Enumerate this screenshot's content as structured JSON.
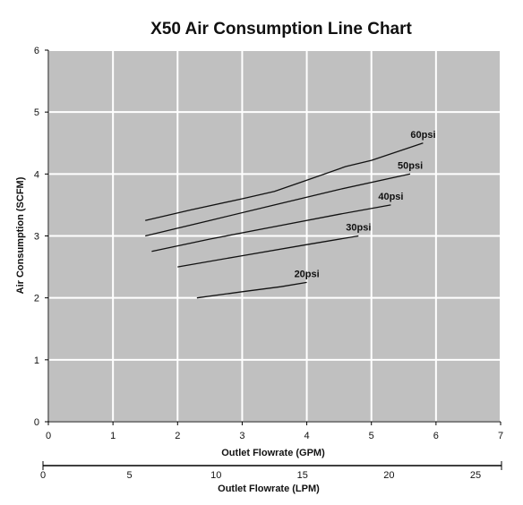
{
  "chart_data": {
    "type": "line",
    "title": "X50 Air Consumption Line Chart",
    "xlabel": "Outlet Flowrate (GPM)",
    "ylabel": "Air Consumption (SCFM)",
    "xlim": [
      0,
      7
    ],
    "ylim": [
      0,
      6
    ],
    "x_ticks": [
      "0",
      "1",
      "2",
      "3",
      "4",
      "5",
      "6",
      "7"
    ],
    "y_ticks": [
      "0",
      "1",
      "2",
      "3",
      "4",
      "5",
      "6"
    ],
    "grid": true,
    "plot_background": "#c0c0c0",
    "grid_color": "#ffffff",
    "line_color": "#111111",
    "secondary_axis": {
      "label": "Outlet Flowrate (LPM)",
      "lim": [
        0,
        26.5
      ],
      "ticks": [
        "0",
        "5",
        "10",
        "15",
        "20",
        "25"
      ]
    },
    "series": [
      {
        "name": "20psi",
        "x": [
          2.3,
          3.0,
          3.6,
          4.0
        ],
        "y": [
          2.0,
          2.1,
          2.18,
          2.25
        ]
      },
      {
        "name": "30psi",
        "x": [
          2.0,
          3.0,
          4.0,
          4.8
        ],
        "y": [
          2.5,
          2.68,
          2.86,
          3.0
        ]
      },
      {
        "name": "40psi",
        "x": [
          1.6,
          2.5,
          3.5,
          4.5,
          5.3
        ],
        "y": [
          2.75,
          2.95,
          3.15,
          3.35,
          3.5
        ]
      },
      {
        "name": "50psi",
        "x": [
          1.5,
          2.5,
          3.5,
          4.5,
          5.6
        ],
        "y": [
          3.0,
          3.25,
          3.5,
          3.75,
          4.0
        ]
      },
      {
        "name": "60psi",
        "x": [
          1.5,
          2.2,
          3.0,
          3.5,
          4.0,
          4.6,
          5.0,
          5.8
        ],
        "y": [
          3.25,
          3.42,
          3.6,
          3.72,
          3.9,
          4.12,
          4.22,
          4.5
        ]
      }
    ]
  }
}
